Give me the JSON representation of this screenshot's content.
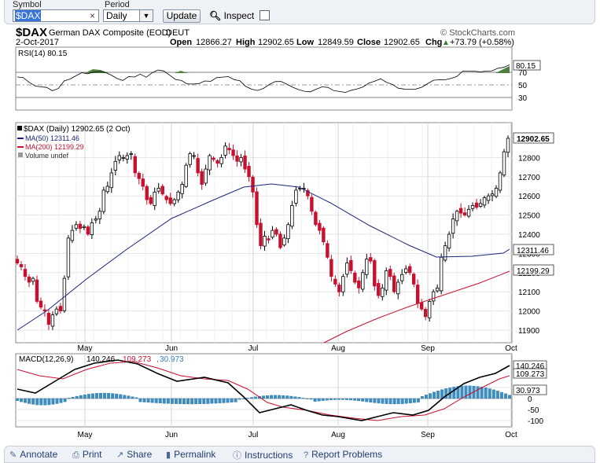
{
  "toolbar": {
    "symbol_label": "Symbol",
    "symbol_value": "$DAX",
    "symbol_clear": "×",
    "period_label": "Period",
    "period_value": "Daily",
    "update_label": "Update",
    "inspect_label": "Inspect",
    "inspect_checked": false
  },
  "chart_header": {
    "symbol": "$DAX",
    "name": "German DAX Composite (EOD)",
    "exchange": "DEUT",
    "watermark": "© StockCharts.com",
    "date": "2-Oct-2017",
    "open_label": "Open",
    "open": "12866.27",
    "high_label": "High",
    "high": "12902.65",
    "low_label": "Low",
    "low": "12849.59",
    "close_label": "Close",
    "close": "12902.65",
    "chg_label": "Chg",
    "chg": "+73.79 (+0.58%)",
    "chg_arrow": "▲"
  },
  "rsi_panel": {
    "label": "RSI(14) 80.15",
    "current": "80.15",
    "ticks": [
      "70",
      "50",
      "30"
    ],
    "tick_values": [
      70,
      50,
      30
    ]
  },
  "price_panel": {
    "legend_main": "$DAX (Daily) 12902.65 (2 Oct)",
    "legend_ma50": "MA(50) 12311.46",
    "legend_ma200": "MA(200) 12199.29",
    "legend_volume": "Volume undef",
    "ticks": [
      "12800",
      "12700",
      "12600",
      "12500",
      "12400",
      "12300",
      "12200",
      "12100",
      "12000",
      "11900"
    ],
    "tick_values": [
      12800,
      12700,
      12600,
      12500,
      12400,
      12300,
      12200,
      12100,
      12000,
      11900
    ],
    "last_price": "12902.65",
    "ma50_value": "12311.46",
    "ma200_value": "12199.29",
    "months": [
      "May",
      "Jun",
      "Jul",
      "Aug",
      "Sep",
      "Oct"
    ]
  },
  "macd_panel": {
    "label_prefix": "MACD(12,26,9)",
    "macd": "140.246",
    "signal": "109.273",
    "hist": "30.973",
    "ticks": [
      "50",
      "0",
      "-50",
      "-100"
    ],
    "tick_values": [
      50,
      0,
      -50,
      -100
    ],
    "months": [
      "May",
      "Jun",
      "Jul",
      "Aug",
      "Sep",
      "Oct"
    ]
  },
  "colors": {
    "up_candle": "#000000",
    "down_candle": "#c8102e",
    "ma50": "#1a237e",
    "ma200": "#c8102e",
    "histogram": "#3b8fc4",
    "rsi_fill": "#4f7f3f",
    "grid": "#e3e3e3"
  },
  "footer": {
    "annotate": "Annotate",
    "print": "Print",
    "share": "Share",
    "permalink": "Permalink",
    "instructions": "Instructions",
    "report": "Report Problems"
  },
  "chart_data": {
    "type": "candlestick",
    "x_range": [
      "2017-04-12",
      "2017-10-02"
    ],
    "y_range": [
      11850,
      12950
    ],
    "close": [
      12250,
      12230,
      12180,
      12150,
      12170,
      12050,
      12020,
      12000,
      11930,
      11980,
      12010,
      12000,
      12170,
      12380,
      12420,
      12450,
      12430,
      12440,
      12400,
      12460,
      12480,
      12520,
      12630,
      12650,
      12720,
      12780,
      12810,
      12800,
      12810,
      12820,
      12720,
      12690,
      12650,
      12580,
      12560,
      12620,
      12640,
      12610,
      12580,
      12560,
      12580,
      12620,
      12660,
      12760,
      12820,
      12810,
      12720,
      12660,
      12740,
      12810,
      12790,
      12770,
      12800,
      12860,
      12840,
      12810,
      12780,
      12800,
      12740,
      12700,
      12620,
      12450,
      12340,
      12390,
      12370,
      12420,
      12400,
      12330,
      12380,
      12450,
      12550,
      12630,
      12640,
      12640,
      12600,
      12520,
      12450,
      12420,
      12360,
      12280,
      12180,
      12140,
      12100,
      12180,
      12250,
      12210,
      12150,
      12120,
      12200,
      12270,
      12260,
      12130,
      12080,
      12120,
      12210,
      12180,
      12100,
      12150,
      12190,
      12220,
      12200,
      12140,
      12040,
      12010,
      11970,
      12050,
      12100,
      12120,
      12280,
      12340,
      12400,
      12480,
      12520,
      12510,
      12500,
      12530,
      12550,
      12540,
      12560,
      12590,
      12600,
      12610,
      12640,
      12720,
      12830,
      12900
    ],
    "ma50_end": 12311.46,
    "ma200_end": 12199.29,
    "macd_end": 140.246,
    "signal_end": 109.273,
    "hist_end": 30.973,
    "rsi_end": 80.15
  }
}
